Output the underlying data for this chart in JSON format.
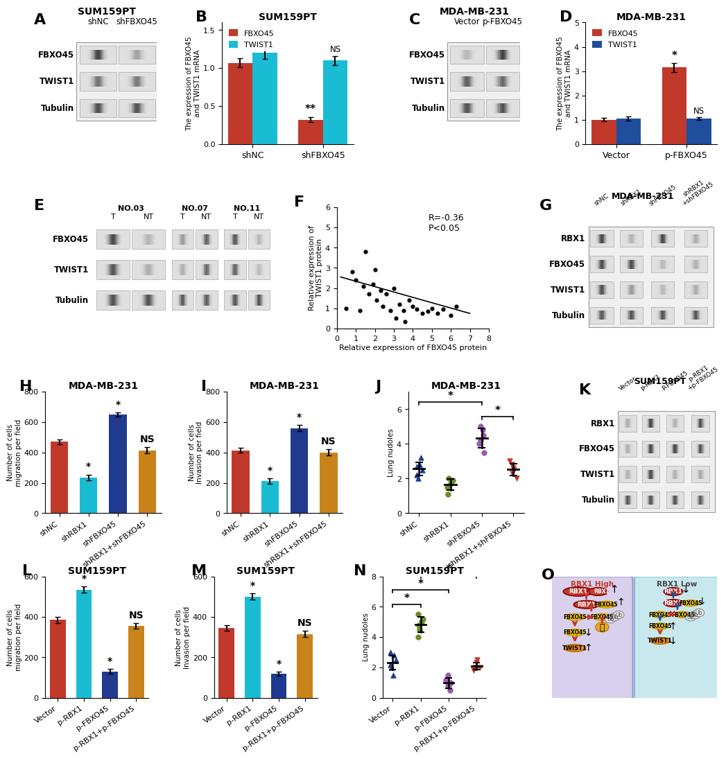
{
  "panel_B": {
    "title": "SUM159PT",
    "ylabel": "The expression of FBXO45\nand TWIST1 mRNA",
    "groups": [
      "shNC",
      "shFBXO45"
    ],
    "fbxo45_vals": [
      1.07,
      0.32
    ],
    "fbxo45_errs": [
      0.06,
      0.03
    ],
    "twist1_vals": [
      1.2,
      1.1
    ],
    "twist1_errs": [
      0.08,
      0.06
    ],
    "fbxo45_color": "#C0392B",
    "twist1_color": "#1ABCD4",
    "ylim": [
      0,
      1.6
    ],
    "yticks": [
      0.0,
      0.5,
      1.0,
      1.5
    ]
  },
  "panel_D": {
    "title": "MDA-MB-231",
    "ylabel": "The expression of FBXO45\nand TWIST1 mRNA",
    "groups": [
      "Vector",
      "p-FBXO45"
    ],
    "fbxo45_vals": [
      1.0,
      3.15
    ],
    "fbxo45_errs": [
      0.08,
      0.18
    ],
    "twist1_vals": [
      1.05,
      1.05
    ],
    "twist1_errs": [
      0.08,
      0.06
    ],
    "fbxo45_color": "#C0392B",
    "twist1_color": "#1F4E9C",
    "ylim": [
      0,
      5
    ],
    "yticks": [
      0,
      1,
      2,
      3,
      4,
      5
    ]
  },
  "panel_F": {
    "xlabel": "Relative expression of FBXO45 protein",
    "ylabel": "Relative expression of\nTWIST1 protein",
    "xlim": [
      0,
      8
    ],
    "ylim": [
      0,
      6
    ],
    "xticks": [
      0,
      1,
      2,
      3,
      4,
      5,
      6,
      7,
      8
    ],
    "yticks": [
      0,
      1,
      2,
      3,
      4,
      5,
      6
    ],
    "scatter_x": [
      0.5,
      0.8,
      1.0,
      1.2,
      1.4,
      1.5,
      1.7,
      1.9,
      2.0,
      2.1,
      2.3,
      2.4,
      2.6,
      2.8,
      3.0,
      3.1,
      3.3,
      3.5,
      3.6,
      3.8,
      4.0,
      4.2,
      4.5,
      4.8,
      5.0,
      5.3,
      5.6,
      6.0,
      6.3
    ],
    "scatter_y": [
      1.0,
      2.8,
      2.4,
      0.9,
      2.1,
      3.8,
      1.7,
      2.2,
      2.9,
      1.4,
      1.9,
      1.1,
      1.7,
      0.9,
      2.0,
      0.5,
      1.2,
      0.9,
      0.35,
      1.4,
      1.1,
      0.95,
      0.75,
      0.85,
      1.0,
      0.75,
      0.95,
      0.65,
      1.1
    ],
    "annotation": "R=-0.36\nP<0.05",
    "line_x": [
      0.2,
      7.0
    ],
    "line_y": [
      2.55,
      0.75
    ]
  },
  "panel_H": {
    "title": "MDA-MB-231",
    "ylabel": "Number of cells\nmigration per field",
    "categories": [
      "shNC",
      "shRBX1",
      "shFBXO45",
      "shRBX1+shFBXO45"
    ],
    "values": [
      470,
      235,
      650,
      415
    ],
    "errors": [
      18,
      20,
      15,
      22
    ],
    "colors": [
      "#C0392B",
      "#1ABCD4",
      "#1F3A8F",
      "#C8841A"
    ],
    "ylim": [
      0,
      800
    ],
    "yticks": [
      0,
      200,
      400,
      600,
      800
    ],
    "annots": [
      "",
      "*",
      "*",
      "NS"
    ]
  },
  "panel_I": {
    "title": "MDA-MB-231",
    "ylabel": "Number of cells\nInvasion per field",
    "categories": [
      "shNC",
      "shRBX1",
      "shFBXO45",
      "shRBX1+shFBXO45"
    ],
    "values": [
      415,
      210,
      560,
      400
    ],
    "errors": [
      15,
      18,
      20,
      20
    ],
    "colors": [
      "#C0392B",
      "#1ABCD4",
      "#1F3A8F",
      "#C8841A"
    ],
    "ylim": [
      0,
      800
    ],
    "yticks": [
      0,
      200,
      400,
      600,
      800
    ],
    "annots": [
      "",
      "*",
      "*",
      "NS"
    ]
  },
  "panel_J": {
    "title": "MDA-MB-231",
    "ylabel": "Lung nudoles",
    "categories": [
      "shNC",
      "shRBX1",
      "shFBXO45",
      "shRBX1+shFBXO45"
    ],
    "scatter_data": [
      [
        2.0,
        2.5,
        3.2,
        2.8,
        2.2,
        2.7
      ],
      [
        1.5,
        1.8,
        1.1,
        2.0,
        1.6,
        1.9
      ],
      [
        3.5,
        4.0,
        4.5,
        5.0,
        4.2,
        4.8
      ],
      [
        2.0,
        2.5,
        2.8,
        3.0,
        2.3,
        2.6
      ]
    ],
    "means": [
      2.57,
      1.65,
      4.33,
      2.53
    ],
    "errors": [
      0.38,
      0.31,
      0.55,
      0.34
    ],
    "colors": [
      "#1F3A8F",
      "#6B8E23",
      "#9B59B6",
      "#C0392B"
    ],
    "markers": [
      "^",
      "o",
      "o",
      "v"
    ],
    "ylim": [
      0,
      7
    ],
    "yticks": [
      0,
      2,
      4,
      6
    ],
    "sig_pairs": [
      [
        0,
        2,
        "*"
      ],
      [
        2,
        3,
        "*"
      ]
    ]
  },
  "panel_L": {
    "title": "SUM159PT",
    "ylabel": "Number of cells\nmigration per field",
    "categories": [
      "Vector",
      "p-RBX1",
      "p-FBXO45",
      "p-RBX1+p-FBXO45"
    ],
    "values": [
      385,
      535,
      130,
      355
    ],
    "errors": [
      15,
      15,
      12,
      15
    ],
    "colors": [
      "#C0392B",
      "#1ABCD4",
      "#1F3A8F",
      "#C8841A"
    ],
    "ylim": [
      0,
      600
    ],
    "yticks": [
      0,
      200,
      400,
      600
    ],
    "annots": [
      "",
      "*",
      "*",
      "NS"
    ]
  },
  "panel_M": {
    "title": "SUM159PT",
    "ylabel": "Number of cells\nInvasion per field",
    "categories": [
      "Vector",
      "p-RBX1",
      "p-FBXO45",
      "p-RBX1+p-FBXO45"
    ],
    "values": [
      345,
      500,
      120,
      315
    ],
    "errors": [
      15,
      15,
      10,
      15
    ],
    "colors": [
      "#C0392B",
      "#1ABCD4",
      "#1F3A8F",
      "#C8841A"
    ],
    "ylim": [
      0,
      600
    ],
    "yticks": [
      0,
      200,
      400,
      600
    ],
    "annots": [
      "",
      "*",
      "*",
      "NS"
    ]
  },
  "panel_N": {
    "title": "SUM159PT",
    "ylabel": "Lung nudoles",
    "categories": [
      "Vector",
      "p-RBX1",
      "p-FBXO45",
      "p-RBX1+p-FBXO45"
    ],
    "scatter_data": [
      [
        2.0,
        2.5,
        2.8,
        1.5,
        3.0,
        2.2
      ],
      [
        4.0,
        5.0,
        5.5,
        4.8,
        4.5,
        5.2
      ],
      [
        1.0,
        1.2,
        0.5,
        1.5,
        0.8,
        0.9
      ],
      [
        2.0,
        2.5,
        2.0,
        1.8,
        2.3,
        2.0
      ]
    ],
    "means": [
      2.33,
      4.83,
      0.98,
      2.1
    ],
    "errors": [
      0.45,
      0.51,
      0.35,
      0.22
    ],
    "colors": [
      "#1F3A8F",
      "#6B8E23",
      "#9B59B6",
      "#C0392B"
    ],
    "markers": [
      "^",
      "o",
      "o",
      "v"
    ],
    "ylim": [
      0,
      8
    ],
    "yticks": [
      0,
      2,
      4,
      6,
      8
    ],
    "sig_pairs": [
      [
        0,
        1,
        "*"
      ],
      [
        0,
        2,
        "*"
      ],
      [
        1,
        3,
        "*"
      ]
    ]
  },
  "tick_fontsize": 8,
  "title_fontsize": 10,
  "annot_fontsize": 10
}
